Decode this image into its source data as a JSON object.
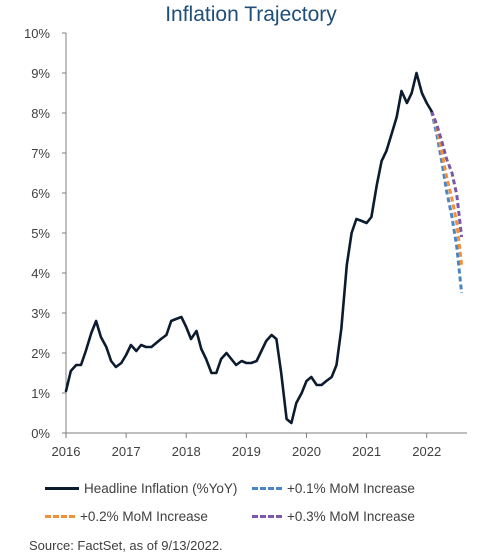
{
  "chart_data": {
    "type": "line",
    "title": "Inflation Trajectory",
    "xlabel": "",
    "ylabel": "",
    "xlim": [
      2016,
      2022.67
    ],
    "ylim": [
      0,
      10
    ],
    "x_ticks": [
      "2016",
      "2017",
      "2018",
      "2019",
      "2020",
      "2021",
      "2022"
    ],
    "y_ticks": [
      "0%",
      "1%",
      "2%",
      "3%",
      "4%",
      "5%",
      "6%",
      "7%",
      "8%",
      "9%",
      "10%"
    ],
    "grid": false,
    "legend_position": "bottom",
    "series": [
      {
        "name": "Headline Inflation (%YoY)",
        "color": "#0d1b2e",
        "style": "solid",
        "points": [
          [
            2016.0,
            1.05
          ],
          [
            2016.08,
            1.55
          ],
          [
            2016.17,
            1.7
          ],
          [
            2016.25,
            1.7
          ],
          [
            2016.33,
            2.05
          ],
          [
            2016.42,
            2.5
          ],
          [
            2016.5,
            2.8
          ],
          [
            2016.58,
            2.4
          ],
          [
            2016.67,
            2.15
          ],
          [
            2016.75,
            1.8
          ],
          [
            2016.83,
            1.65
          ],
          [
            2016.92,
            1.75
          ],
          [
            2017.0,
            1.95
          ],
          [
            2017.08,
            2.2
          ],
          [
            2017.17,
            2.05
          ],
          [
            2017.25,
            2.2
          ],
          [
            2017.33,
            2.15
          ],
          [
            2017.42,
            2.15
          ],
          [
            2017.5,
            2.25
          ],
          [
            2017.58,
            2.35
          ],
          [
            2017.67,
            2.45
          ],
          [
            2017.75,
            2.8
          ],
          [
            2017.83,
            2.85
          ],
          [
            2017.92,
            2.9
          ],
          [
            2018.0,
            2.65
          ],
          [
            2018.08,
            2.35
          ],
          [
            2018.17,
            2.55
          ],
          [
            2018.25,
            2.1
          ],
          [
            2018.33,
            1.85
          ],
          [
            2018.42,
            1.5
          ],
          [
            2018.5,
            1.5
          ],
          [
            2018.58,
            1.85
          ],
          [
            2018.67,
            2.0
          ],
          [
            2018.75,
            1.85
          ],
          [
            2018.83,
            1.7
          ],
          [
            2018.92,
            1.8
          ],
          [
            2019.0,
            1.75
          ],
          [
            2019.08,
            1.75
          ],
          [
            2019.17,
            1.8
          ],
          [
            2019.25,
            2.05
          ],
          [
            2019.33,
            2.3
          ],
          [
            2019.42,
            2.45
          ],
          [
            2019.5,
            2.35
          ],
          [
            2019.58,
            1.5
          ],
          [
            2019.67,
            0.35
          ],
          [
            2019.75,
            0.25
          ],
          [
            2019.83,
            0.75
          ],
          [
            2019.92,
            1.0
          ],
          [
            2020.0,
            1.3
          ],
          [
            2020.08,
            1.4
          ],
          [
            2020.17,
            1.2
          ],
          [
            2020.25,
            1.2
          ],
          [
            2020.33,
            1.3
          ],
          [
            2020.42,
            1.4
          ],
          [
            2020.5,
            1.7
          ],
          [
            2020.58,
            2.6
          ],
          [
            2020.67,
            4.2
          ],
          [
            2020.75,
            5.0
          ],
          [
            2020.83,
            5.35
          ],
          [
            2020.92,
            5.3
          ],
          [
            2021.0,
            5.25
          ],
          [
            2021.08,
            5.4
          ],
          [
            2021.17,
            6.2
          ],
          [
            2021.25,
            6.8
          ],
          [
            2021.33,
            7.05
          ],
          [
            2021.42,
            7.5
          ],
          [
            2021.5,
            7.9
          ],
          [
            2021.58,
            8.55
          ],
          [
            2021.67,
            8.25
          ],
          [
            2021.75,
            8.5
          ],
          [
            2021.83,
            9.0
          ],
          [
            2021.92,
            8.5
          ],
          [
            2022.0,
            8.25
          ],
          [
            2022.08,
            8.05
          ]
        ]
      },
      {
        "name": "+0.1% MoM Increase",
        "color": "#4a86c5",
        "style": "dashed",
        "points": [
          [
            2022.08,
            8.05
          ],
          [
            2022.17,
            7.45
          ],
          [
            2022.25,
            6.8
          ],
          [
            2022.33,
            6.05
          ],
          [
            2022.42,
            5.4
          ],
          [
            2022.5,
            4.65
          ],
          [
            2022.58,
            3.5
          ]
        ]
      },
      {
        "name": "+0.2% MoM Increase",
        "color": "#f0913a",
        "style": "dashed",
        "points": [
          [
            2022.08,
            8.05
          ],
          [
            2022.17,
            7.6
          ],
          [
            2022.25,
            7.05
          ],
          [
            2022.33,
            6.4
          ],
          [
            2022.42,
            5.85
          ],
          [
            2022.5,
            5.25
          ],
          [
            2022.58,
            4.2
          ]
        ]
      },
      {
        "name": "+0.3% MoM Increase",
        "color": "#7a57a8",
        "style": "dashed",
        "points": [
          [
            2022.08,
            8.05
          ],
          [
            2022.17,
            7.7
          ],
          [
            2022.25,
            7.3
          ],
          [
            2022.33,
            6.85
          ],
          [
            2022.42,
            6.5
          ],
          [
            2022.5,
            5.95
          ],
          [
            2022.58,
            4.9
          ]
        ]
      }
    ]
  },
  "source": "Source: FactSet, as of 9/13/2022."
}
